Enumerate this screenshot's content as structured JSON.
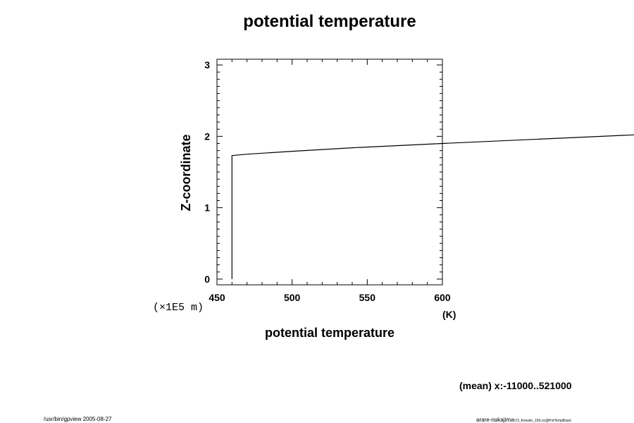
{
  "chart_data": {
    "type": "line",
    "title": "potential temperature",
    "xlabel": "potential temperature",
    "x_unit": "(K)",
    "ylabel": "Z-coordinate",
    "y_unit": "(×1E5 m)",
    "xlim": [
      450,
      600
    ],
    "ylim": [
      -0.08,
      3.08
    ],
    "x_ticks": [
      450,
      500,
      550,
      600
    ],
    "y_ticks": [
      0,
      1,
      2,
      3
    ],
    "grid": false,
    "series": [
      {
        "x": [
          460,
          460,
          470,
          500,
          540,
          600,
          730
        ],
        "y": [
          0,
          1.73,
          1.75,
          1.79,
          1.84,
          1.9,
          2.02
        ]
      }
    ]
  },
  "footer": {
    "mean_note": "(mean) x:-11000..521000",
    "program_info": "/usr/bin/gpview 2005-08-27",
    "source_info": "arare-nakajima",
    "source_detail": "CO_Kessler_150.nc@PotTempBasic"
  }
}
